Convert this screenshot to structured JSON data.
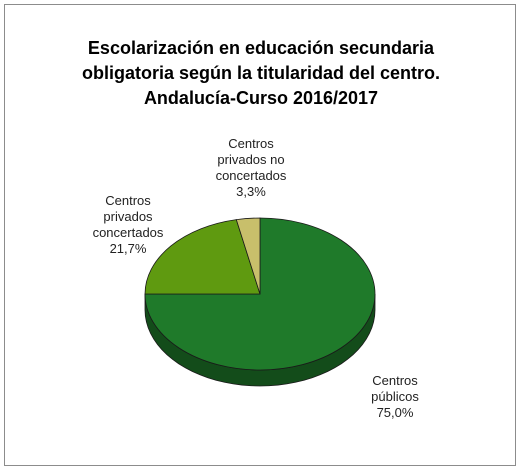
{
  "chart_data": {
    "type": "pie",
    "title_lines": [
      "Escolarización en educación secundaria",
      "obligatoria según la titularidad del centro.",
      "Andalucía-Curso 2016/2017"
    ],
    "slices": [
      {
        "label_lines": [
          "Centros",
          "públicos"
        ],
        "value": 75.0,
        "value_text": "75,0%",
        "color": "#1f7a2a"
      },
      {
        "label_lines": [
          "Centros",
          "privados",
          "concertados"
        ],
        "value": 21.7,
        "value_text": "21,7%",
        "color": "#5f9a10"
      },
      {
        "label_lines": [
          "Centros",
          "privados no",
          "concertados"
        ],
        "value": 3.3,
        "value_text": "3,3%",
        "color": "#c8bf6b"
      }
    ],
    "legend": "none",
    "style": "3d-pie"
  }
}
